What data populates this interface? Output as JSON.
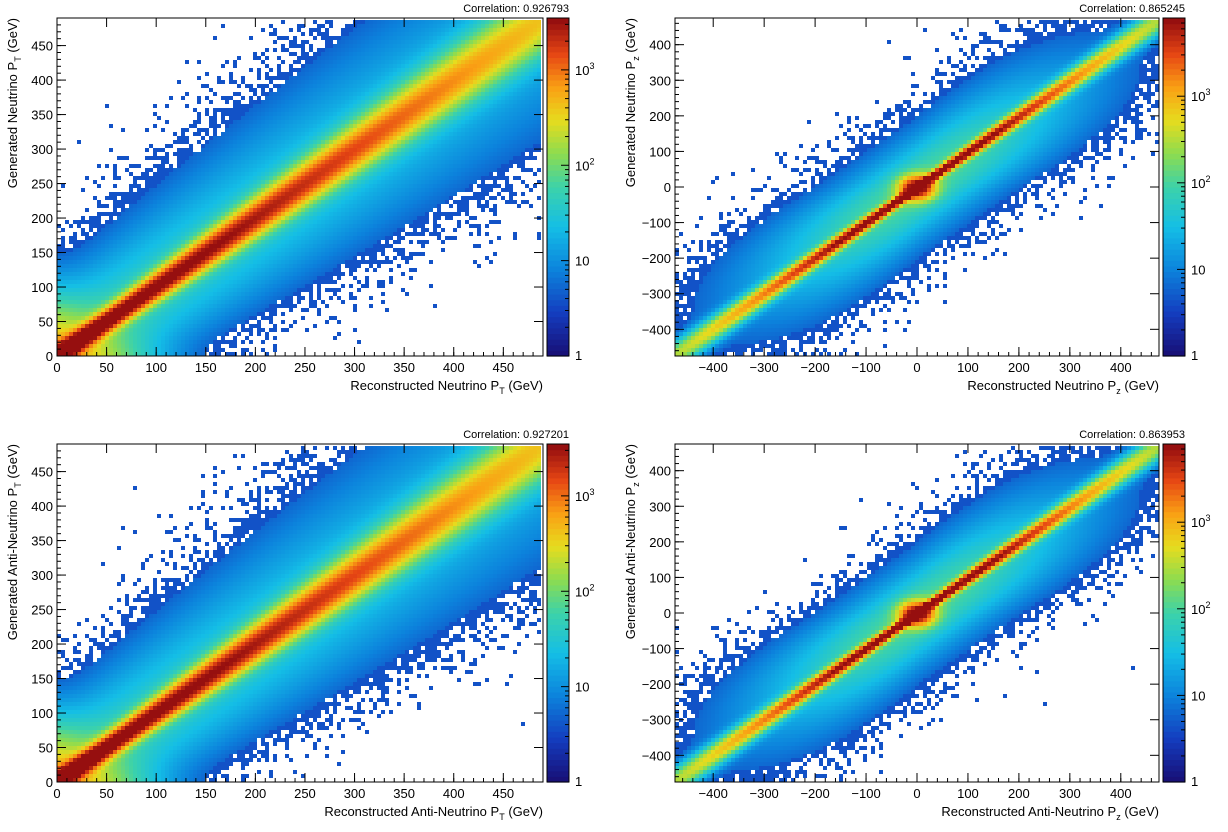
{
  "chart_data": [
    {
      "type": "heatmap",
      "title": "Correlation: 0.926793",
      "xlabel_main": "Reconstructed Neutrino P",
      "xlabel_sub": "T",
      "xlabel_unit": " (GeV)",
      "ylabel_main": "Generated Neutrino P",
      "ylabel_sub": "T",
      "ylabel_unit": " (GeV)",
      "xlim": [
        0,
        490
      ],
      "ylim": [
        0,
        490
      ],
      "xticks": [
        0,
        50,
        100,
        150,
        200,
        250,
        300,
        350,
        400,
        450
      ],
      "yticks": [
        0,
        50,
        100,
        150,
        200,
        250,
        300,
        350,
        400,
        450
      ],
      "colorbar": {
        "scale": "log",
        "range": [
          1,
          3500
        ],
        "tick_labels": [
          "1",
          "10",
          "10",
          "10"
        ],
        "tick_exponents": [
          "",
          "",
          "2",
          "3"
        ]
      },
      "correlation": 0.926793,
      "colormap": "rainbow",
      "tail_shape": "pt"
    },
    {
      "type": "heatmap",
      "title": "Correlation: 0.865245",
      "xlabel_main": "Reconstructed Neutrino P",
      "xlabel_sub": "z",
      "xlabel_unit": " (GeV)",
      "ylabel_main": "Generated Neutrino P",
      "ylabel_sub": "z",
      "ylabel_unit": " (GeV)",
      "xlim": [
        -475,
        475
      ],
      "ylim": [
        -475,
        475
      ],
      "xticks": [
        -400,
        -300,
        -200,
        -100,
        0,
        100,
        200,
        300,
        400
      ],
      "yticks": [
        -400,
        -300,
        -200,
        -100,
        0,
        100,
        200,
        300,
        400
      ],
      "xtick_labels": [
        "−400",
        "−300",
        "−200",
        "−100",
        "0",
        "100",
        "200",
        "300",
        "400"
      ],
      "ytick_labels": [
        "−400",
        "−300",
        "−200",
        "−100",
        "0",
        "100",
        "200",
        "300",
        "400"
      ],
      "colorbar": {
        "scale": "log",
        "range": [
          1,
          8000
        ],
        "tick_labels": [
          "1",
          "10",
          "10",
          "10"
        ],
        "tick_exponents": [
          "",
          "",
          "2",
          "3"
        ]
      },
      "correlation": 0.865245,
      "colormap": "rainbow",
      "tail_shape": "pz"
    },
    {
      "type": "heatmap",
      "title": "Correlation: 0.927201",
      "xlabel_main": "Reconstructed Anti-Neutrino P",
      "xlabel_sub": "T",
      "xlabel_unit": " (GeV)",
      "ylabel_main": "Generated Anti-Neutrino P",
      "ylabel_sub": "T",
      "ylabel_unit": " (GeV)",
      "xlim": [
        0,
        490
      ],
      "ylim": [
        0,
        490
      ],
      "xticks": [
        0,
        50,
        100,
        150,
        200,
        250,
        300,
        350,
        400,
        450
      ],
      "yticks": [
        0,
        50,
        100,
        150,
        200,
        250,
        300,
        350,
        400,
        450
      ],
      "colorbar": {
        "scale": "log",
        "range": [
          1,
          3500
        ],
        "tick_labels": [
          "1",
          "10",
          "10",
          "10"
        ],
        "tick_exponents": [
          "",
          "",
          "2",
          "3"
        ]
      },
      "correlation": 0.927201,
      "colormap": "rainbow",
      "tail_shape": "pt"
    },
    {
      "type": "heatmap",
      "title": "Correlation: 0.863953",
      "xlabel_main": "Reconstructed Anti-Neutrino P",
      "xlabel_sub": "z",
      "xlabel_unit": " (GeV)",
      "ylabel_main": "Generated Anti-Neutrino P",
      "ylabel_sub": "z",
      "ylabel_unit": " (GeV)",
      "xlim": [
        -475,
        475
      ],
      "ylim": [
        -475,
        475
      ],
      "xticks": [
        -400,
        -300,
        -200,
        -100,
        0,
        100,
        200,
        300,
        400
      ],
      "yticks": [
        -400,
        -300,
        -200,
        -100,
        0,
        100,
        200,
        300,
        400
      ],
      "xtick_labels": [
        "−400",
        "−300",
        "−200",
        "−100",
        "0",
        "100",
        "200",
        "300",
        "400"
      ],
      "ytick_labels": [
        "−400",
        "−300",
        "−200",
        "−100",
        "0",
        "100",
        "200",
        "300",
        "400"
      ],
      "colorbar": {
        "scale": "log",
        "range": [
          1,
          8000
        ],
        "tick_labels": [
          "1",
          "10",
          "10",
          "10"
        ],
        "tick_exponents": [
          "",
          "",
          "2",
          "3"
        ]
      },
      "correlation": 0.863953,
      "colormap": "rainbow",
      "tail_shape": "pz"
    }
  ]
}
